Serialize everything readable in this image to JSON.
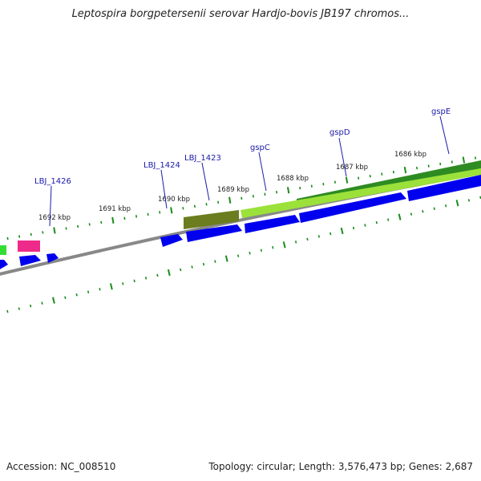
{
  "title": "Leptospira borgpetersenii serovar Hardjo-bovis JB197 chromos...",
  "footer": {
    "accession": "Accession: NC_008510",
    "info": "Topology: circular; Length: 3,576,473 bp; Genes: 2,687"
  },
  "kbp_labels": [
    "1692 kbp",
    "1691 kbp",
    "1690 kbp",
    "1689 kbp",
    "1688 kbp",
    "1687 kbp",
    "1686 kbp"
  ],
  "gene_labels": [
    "LBJ_1426",
    "LBJ_1424",
    "LBJ_1423",
    "gspC",
    "gspD",
    "gspE"
  ],
  "colors": {
    "backbone": "#888888",
    "tick": "#1a8c1a",
    "cds": "#0000ee",
    "gene_dark_green": "#2e8b22",
    "gene_olive": "#6b7d1e",
    "gene_lime": "#9be13a",
    "gene_pink": "#ee2b8a",
    "gene_green": "#33dd33",
    "label": "#1a1aa8"
  }
}
